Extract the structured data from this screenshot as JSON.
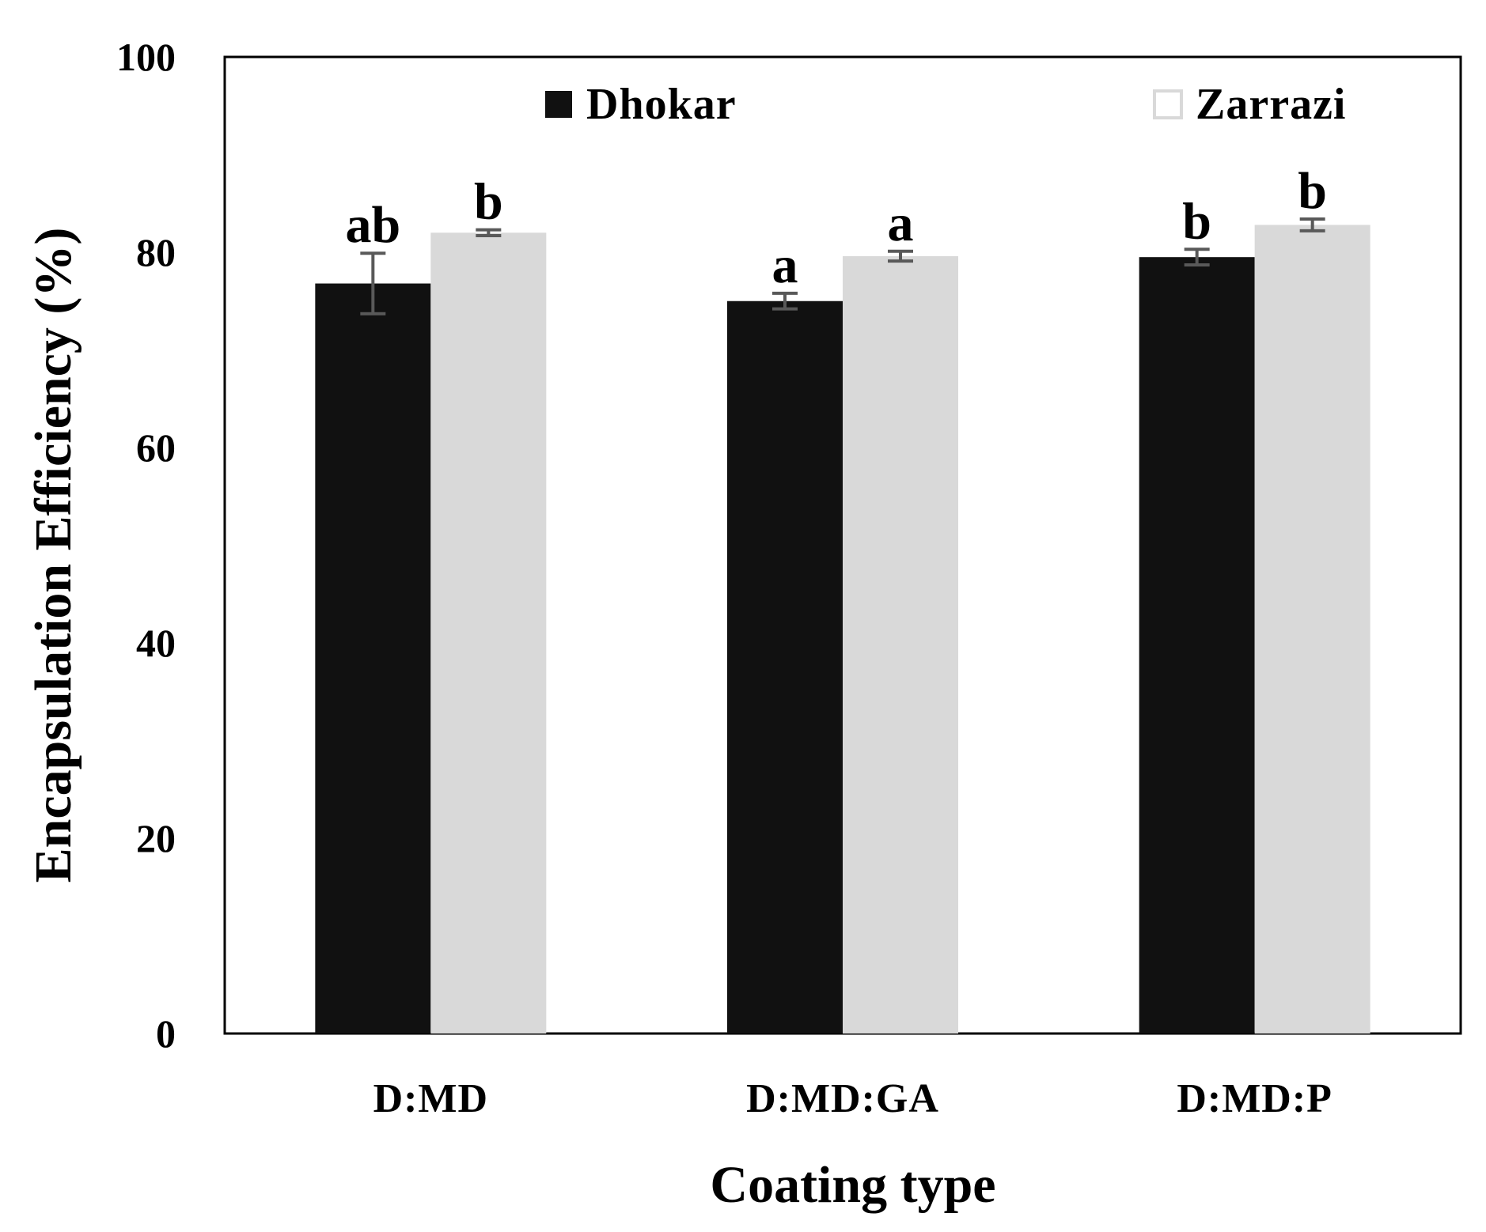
{
  "chart_data": {
    "type": "bar",
    "title": "",
    "xlabel": "Coating type",
    "ylabel": "Encapsulation Efficiency (%)",
    "ylim": [
      0,
      100
    ],
    "yticks": [
      0,
      20,
      40,
      60,
      80,
      100
    ],
    "grid": false,
    "legend_position": "top",
    "categories": [
      "D:MD",
      "D:MD:GA",
      "D:MD:P"
    ],
    "series": [
      {
        "name": "Dhokar",
        "color": "#111111",
        "values": [
          76.8,
          75.0,
          79.5
        ],
        "errors": [
          3.1,
          0.8,
          0.8
        ],
        "significance": [
          "ab",
          "a",
          "b"
        ]
      },
      {
        "name": "Zarrazi",
        "color": "#d9d9d9",
        "values": [
          82.0,
          79.6,
          82.8
        ],
        "errors": [
          0.3,
          0.5,
          0.6
        ],
        "significance": [
          "b",
          "a",
          "b"
        ]
      }
    ],
    "errorbar_color": "#595959"
  }
}
